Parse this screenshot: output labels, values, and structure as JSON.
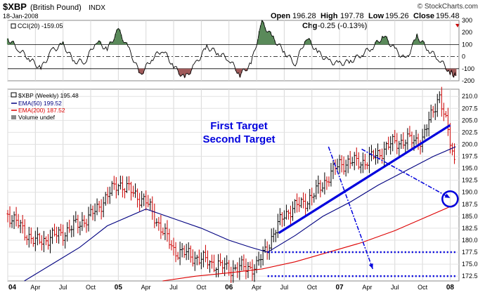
{
  "header": {
    "symbol": "$XBP",
    "name": "(British Pound)",
    "exchange": "INDX",
    "date": "18-Jan-2008",
    "copyright": "© StockCharts.com",
    "quote": {
      "open_label": "Open",
      "open": "196.28",
      "high_label": "High",
      "high": "197.78",
      "low_label": "Low",
      "low": "195.26",
      "close_label": "Close",
      "close": "195.48",
      "chg_label": "Chg",
      "chg": "-0.25 (-0.13%)"
    }
  },
  "colors": {
    "price_up": "#000000",
    "price_down": "#cc0000",
    "ema50": "#000080",
    "ema200": "#dd0000",
    "cci_positive_fill": "#5a8a5a",
    "cci_negative_fill": "#a05a5a",
    "annotation": "#0000dd"
  },
  "chart_data": [
    {
      "type": "line",
      "panel": "indicator",
      "legend": "CCI(20) -159.05",
      "x_tick_labels": [
        "04",
        "Apr",
        "Jul",
        "Oct",
        "05",
        "Apr",
        "Jul",
        "Oct",
        "06",
        "Apr",
        "Jul",
        "Oct",
        "07",
        "Apr",
        "Jul",
        "Oct",
        "08"
      ],
      "ylim": [
        -200,
        300
      ],
      "y_ticks": [
        300,
        200,
        100,
        0,
        -100,
        -200
      ],
      "reference_lines": [
        100,
        0,
        -100
      ],
      "series": [
        {
          "name": "CCI(20)",
          "x": [
            2004.0,
            2004.1,
            2004.2,
            2004.3,
            2004.4,
            2004.5,
            2004.6,
            2004.7,
            2004.8,
            2004.9,
            2005.0,
            2005.1,
            2005.2,
            2005.3,
            2005.4,
            2005.5,
            2005.6,
            2005.7,
            2005.8,
            2005.9,
            2006.0,
            2006.1,
            2006.2,
            2006.3,
            2006.4,
            2006.5,
            2006.6,
            2006.7,
            2006.8,
            2006.9,
            2007.0,
            2007.1,
            2007.2,
            2007.3,
            2007.4,
            2007.5,
            2007.6,
            2007.7,
            2007.8,
            2007.9,
            2008.0,
            2008.05
          ],
          "values": [
            150,
            60,
            -20,
            -100,
            50,
            100,
            -40,
            -40,
            130,
            60,
            220,
            50,
            -150,
            -20,
            60,
            -80,
            -180,
            -60,
            80,
            30,
            -20,
            -150,
            -60,
            280,
            150,
            40,
            -60,
            160,
            40,
            -40,
            -60,
            -40,
            20,
            80,
            170,
            60,
            -30,
            170,
            60,
            -20,
            -130,
            -159
          ]
        }
      ]
    },
    {
      "type": "line",
      "panel": "price",
      "legend": [
        "$XBP (Weekly) 195.48",
        "EMA(50) 199.52",
        "EMA(200) 187.52",
        "Volume undef"
      ],
      "x_tick_labels": [
        "04",
        "Apr",
        "Jul",
        "Oct",
        "05",
        "Apr",
        "Jul",
        "Oct",
        "06",
        "Apr",
        "Jul",
        "Oct",
        "07",
        "Apr",
        "Jul",
        "Oct",
        "08"
      ],
      "ylim": [
        171.5,
        211.5
      ],
      "y_ticks": [
        210.0,
        207.5,
        205.0,
        202.5,
        200.0,
        197.5,
        195.0,
        192.5,
        190.0,
        187.5,
        185.0,
        182.5,
        180.0,
        177.5,
        175.0,
        172.5
      ],
      "series": [
        {
          "name": "$XBP (Weekly)",
          "x": [
            2004.0,
            2004.25,
            2004.5,
            2004.75,
            2005.0,
            2005.25,
            2005.5,
            2005.75,
            2006.0,
            2006.25,
            2006.5,
            2006.75,
            2007.0,
            2007.25,
            2007.5,
            2007.75,
            2007.9,
            2008.05
          ],
          "values": [
            185.5,
            179.5,
            181.5,
            185.0,
            192.0,
            188.0,
            178.0,
            176.0,
            174.0,
            174.5,
            185.5,
            189.0,
            196.0,
            196.5,
            200.5,
            201.0,
            210.5,
            195.5
          ]
        },
        {
          "name": "EMA(50)",
          "x": [
            2004.15,
            2004.4,
            2004.65,
            2004.9,
            2005.25,
            2005.5,
            2005.75,
            2006.0,
            2006.2,
            2006.35,
            2006.6,
            2006.85,
            2007.1,
            2007.35,
            2007.6,
            2007.85,
            2008.05
          ],
          "values": [
            171.5,
            175.0,
            178.5,
            183.0,
            186.5,
            184.5,
            182.5,
            180.0,
            178.5,
            177.5,
            181.0,
            185.0,
            188.0,
            191.5,
            194.5,
            197.5,
            199.5
          ]
        },
        {
          "name": "EMA(200)",
          "x": [
            2005.4,
            2005.7,
            2006.0,
            2006.3,
            2006.6,
            2006.9,
            2007.2,
            2007.5,
            2007.8,
            2008.05
          ],
          "values": [
            171.5,
            172.5,
            173.2,
            174.0,
            175.5,
            177.5,
            179.5,
            182.0,
            185.0,
            187.5
          ]
        }
      ],
      "annotations": {
        "first_target": "First Target",
        "second_target": "Second Target",
        "trendline": {
          "x": [
            2006.45,
            2008.0
          ],
          "values": [
            181.5,
            204.0
          ]
        },
        "target_arrow_1": {
          "x": [
            2007.2,
            2008.0
          ],
          "values": [
            199.0,
            188.8
          ]
        },
        "target_arrow_2": {
          "x": [
            2006.9,
            2007.3
          ],
          "values": [
            199.5,
            174.0
          ]
        },
        "dotted_levels": [
          {
            "x": [
              2006.35,
              2008.05
            ],
            "value": 177.5
          },
          {
            "x": [
              2006.35,
              2008.05
            ],
            "value": 172.5
          }
        ],
        "target_circle": {
          "x": 2008.05,
          "value": 188.6
        }
      }
    }
  ]
}
